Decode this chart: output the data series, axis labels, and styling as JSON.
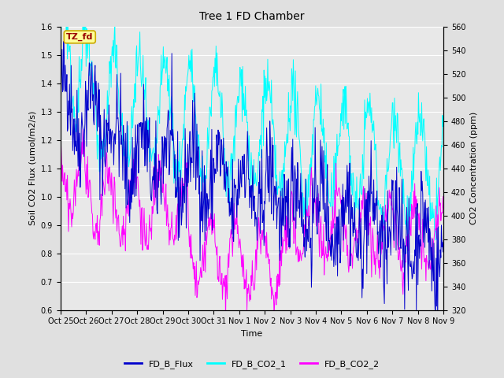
{
  "title": "Tree 1 FD Chamber",
  "xlabel": "Time",
  "ylabel_left": "Soil CO2 Flux (umol/m2/s)",
  "ylabel_right": "CO2 Concentration (ppm)",
  "ylim_left": [
    0.6,
    1.6
  ],
  "ylim_right": [
    320,
    560
  ],
  "yticks_left": [
    0.6,
    0.7,
    0.8,
    0.9,
    1.0,
    1.1,
    1.2,
    1.3,
    1.4,
    1.5,
    1.6
  ],
  "yticks_right": [
    320,
    340,
    360,
    380,
    400,
    420,
    440,
    460,
    480,
    500,
    520,
    540,
    560
  ],
  "xtick_labels": [
    "Oct 25",
    "Oct 26",
    "Oct 27",
    "Oct 28",
    "Oct 29",
    "Oct 30",
    "Oct 31",
    "Nov 1",
    "Nov 2",
    "Nov 3",
    "Nov 4",
    "Nov 5",
    "Nov 6",
    "Nov 7",
    "Nov 8",
    "Nov 9"
  ],
  "n_days": 15,
  "points_per_day": 48,
  "color_flux": "#0000CC",
  "color_co2_1": "#00FFFF",
  "color_co2_2": "#FF00FF",
  "legend_labels": [
    "FD_B_Flux",
    "FD_B_CO2_1",
    "FD_B_CO2_2"
  ],
  "annotation_text": "TZ_fd",
  "annotation_color": "#990000",
  "annotation_bg": "#FFFF99",
  "annotation_border": "#CCAA00",
  "background_color": "#E0E0E0",
  "plot_bg_color": "#E8E8E8",
  "grid_color": "#FFFFFF",
  "seed": 42
}
